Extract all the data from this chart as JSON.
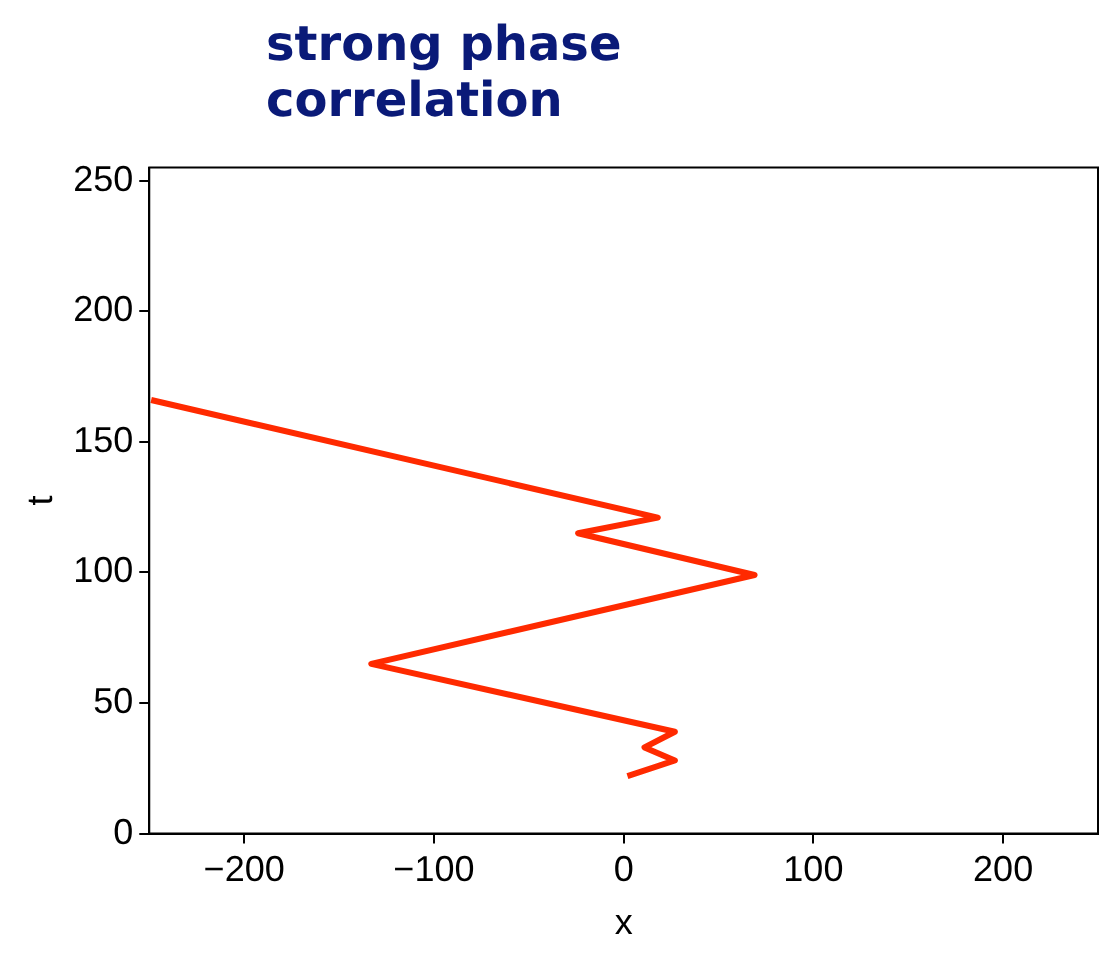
{
  "chart_data": {
    "type": "line",
    "title": "strong phase correlation",
    "xlabel": "x",
    "ylabel": "t",
    "series": [
      {
        "color": "#ff2a00",
        "x": [
          -249,
          18,
          -24,
          69,
          -133,
          27,
          11,
          27,
          2
        ],
        "values": [
          166,
          121,
          115,
          99,
          65,
          39,
          33,
          28,
          22
        ]
      }
    ],
    "xlim": [
      -250,
      250
    ],
    "xticks": [
      -200,
      -100,
      0,
      100,
      200
    ],
    "ylim": [
      0,
      255
    ],
    "yticks": [
      0,
      50,
      100,
      150,
      200,
      250
    ],
    "grid": false,
    "legend": false,
    "marker": "none",
    "line_style": "solid"
  }
}
